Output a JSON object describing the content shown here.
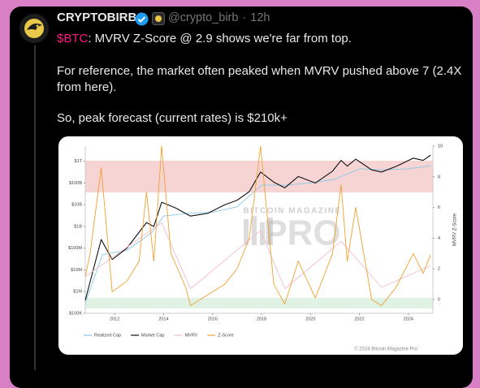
{
  "tweet": {
    "author": {
      "name": "CRYPTOBIRB",
      "handle": "@crypto_birb",
      "separator": "·",
      "time": "12h"
    },
    "text": {
      "cashtag": "$BTC",
      "line1": ": MVRV Z-Score @ 2.9 shows we're far from top.",
      "paragraph2": "For reference, the market often peaked when MVRV pushed above 7 (2.4X from here).",
      "paragraph3": "So, peak forecast (current rates) is $210k+"
    },
    "image": {
      "chart_data": {
        "type": "line",
        "watermark": [
          "BITCOIN MAGAZINE",
          "PRO"
        ],
        "copyright": "© 2024 Bitcoin Magazine Pro",
        "y2label": "MVRV Z-Score",
        "log_y": true,
        "xlim": [
          2010.8,
          2025
        ],
        "xticks": [
          2012,
          2014,
          2016,
          2018,
          2020,
          2022,
          2024
        ],
        "ylim": [
          100000,
          5000000000000
        ],
        "yticks": [
          {
            "value": 100000,
            "label": "$100K"
          },
          {
            "value": 1000000,
            "label": "$1M"
          },
          {
            "value": 10000000,
            "label": "$10M"
          },
          {
            "value": 100000000,
            "label": "$100M"
          },
          {
            "value": 1000000000,
            "label": "$1B"
          },
          {
            "value": 10000000000,
            "label": "$10B"
          },
          {
            "value": 100000000000,
            "label": "$100B"
          },
          {
            "value": 1000000000000,
            "label": "$1T"
          }
        ],
        "y2lim": [
          -0.9,
          10
        ],
        "y2ticks": [
          0,
          2,
          4,
          6,
          8,
          10
        ],
        "series": [
          {
            "name": "Realized Cap",
            "color": "#86c8ea",
            "x": [
              2010.8,
              2011.5,
              2012.5,
              2013.5,
              2014.0,
              2015.0,
              2016.0,
              2017.0,
              2018.0,
              2019.0,
              2020.0,
              2021.0,
              2022.0,
              2023.0,
              2024.0,
              2024.9
            ],
            "values": [
              300000,
              50000000,
              80000000,
              500000000,
              3000000000,
              4000000000,
              4500000000,
              8000000000,
              80000000000,
              80000000000,
              100000000000,
              150000000000,
              450000000000,
              400000000000,
              450000000000,
              630000000000
            ]
          },
          {
            "name": "Market Cap",
            "color": "#111111",
            "x": [
              2010.8,
              2011.45,
              2011.9,
              2012.5,
              2013.3,
              2013.6,
              2013.92,
              2014.5,
              2015.1,
              2015.8,
              2016.5,
              2017.0,
              2017.5,
              2017.96,
              2018.5,
              2018.95,
              2019.5,
              2020.2,
              2020.9,
              2021.25,
              2021.5,
              2021.85,
              2022.5,
              2022.9,
              2023.5,
              2024.2,
              2024.6,
              2024.9
            ],
            "values": [
              400000,
              250000000,
              30000000,
              100000000,
              1500000000,
              1000000000,
              13000000000,
              7000000000,
              3000000000,
              4000000000,
              10000000000,
              16000000000,
              40000000000,
              320000000000,
              110000000000,
              60000000000,
              200000000000,
              100000000000,
              350000000000,
              1100000000000,
              600000000000,
              1250000000000,
              400000000000,
              320000000000,
              580000000000,
              1400000000000,
              1100000000000,
              1900000000000
            ]
          },
          {
            "name": "MVRV",
            "color": "#f4bccb",
            "axis": "y2",
            "x": [
              2010.8,
              2013.92,
              2015.1,
              2017.96,
              2018.95,
              2021.25,
              2022.9,
              2024.9
            ],
            "values": [
              1.5,
              5,
              0.7,
              4.5,
              0.7,
              3.8,
              0.8,
              2.2
            ]
          },
          {
            "name": "Z-Score",
            "color": "#f0a030",
            "axis": "y2",
            "x": [
              2010.8,
              2011.0,
              2011.45,
              2011.9,
              2012.5,
              2013.0,
              2013.3,
              2013.6,
              2013.92,
              2014.3,
              2014.9,
              2015.1,
              2015.8,
              2016.5,
              2017.0,
              2017.5,
              2017.96,
              2018.5,
              2018.95,
              2019.5,
              2020.2,
              2020.9,
              2021.25,
              2021.5,
              2021.85,
              2022.5,
              2022.9,
              2023.5,
              2024.2,
              2024.6,
              2024.9
            ],
            "values": [
              1.5,
              3,
              8.6,
              0.5,
              1.2,
              2.5,
              7,
              2.5,
              10,
              3,
              0.8,
              -0.4,
              0.3,
              1,
              2,
              4,
              10,
              1,
              -0.3,
              2.5,
              0.1,
              3,
              7.5,
              2.5,
              6,
              0,
              -0.4,
              0.8,
              3,
              1.7,
              2.9
            ]
          }
        ]
      }
    }
  }
}
